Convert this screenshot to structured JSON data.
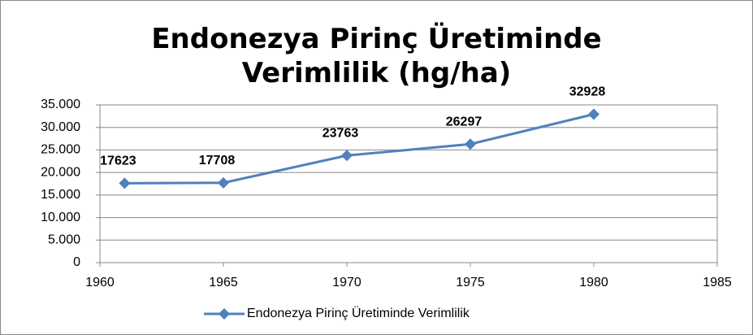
{
  "chart_data": {
    "type": "line",
    "title": "Endonezya Pirinç Üretiminde Verimlilik (hg/ha)",
    "x": [
      1961,
      1965,
      1970,
      1975,
      1980
    ],
    "series": [
      {
        "name": "Endonezya Pirinç Üretiminde Verimlilik",
        "color": "#4f81bd",
        "values": [
          17623,
          17708,
          23763,
          26297,
          32928
        ]
      }
    ],
    "xlim": [
      1960,
      1985
    ],
    "xticks": [
      1960,
      1965,
      1970,
      1975,
      1980,
      1985
    ],
    "ylim": [
      0,
      35000
    ],
    "yticks": [
      0,
      {
        "value": 5000,
        "label": "5.000"
      },
      {
        "value": 10000,
        "label": "10.000"
      },
      {
        "value": 15000,
        "label": "15.000"
      },
      {
        "value": 20000,
        "label": "20.000"
      },
      {
        "value": 25000,
        "label": "25.000"
      },
      {
        "value": 30000,
        "label": "30.000"
      },
      {
        "value": 35000,
        "label": "35.000"
      }
    ],
    "grid": true,
    "legend": "bottom"
  }
}
